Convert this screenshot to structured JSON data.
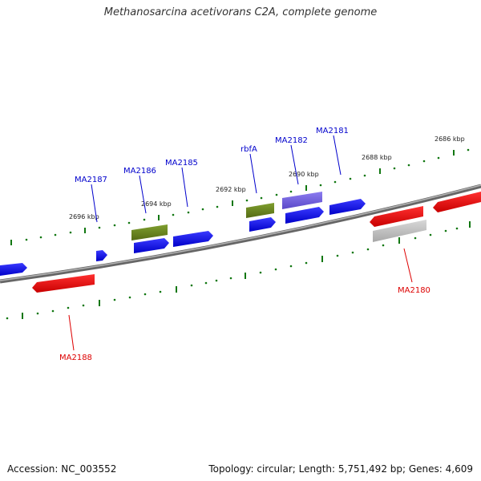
{
  "title": "Methanosarcina acetivorans C2A, complete genome",
  "footer": {
    "accession": "Accession: NC_003552",
    "summary": "Topology: circular; Length: 5,751,492 bp; Genes: 4,609"
  },
  "colors": {
    "backbone": "#888888",
    "forward_cds": "#0000ee",
    "reverse_cds": "#ee0000",
    "rna": "#6b8e23",
    "other": "#7b68ee",
    "pseudo": "#bbbbbb",
    "tick": "#117711",
    "tick_label": "#222222",
    "label_forward": "#0000cc",
    "label_reverse": "#dd0000"
  },
  "tick_labels": [
    "2696 kbp",
    "2694 kbp",
    "2692 kbp",
    "2690 kbp",
    "2688 kbp",
    "2686 kbp"
  ],
  "gene_labels": {
    "forward": [
      "MA2187",
      "MA2186",
      "MA2185",
      "rbfA",
      "MA2182",
      "MA2181"
    ],
    "reverse": [
      "MA2188",
      "MA2180"
    ]
  }
}
